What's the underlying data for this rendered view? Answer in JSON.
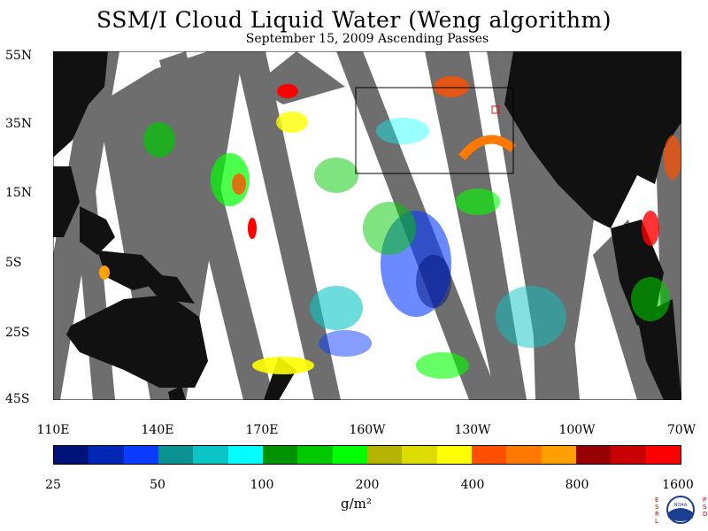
{
  "title": "SSM/I Cloud Liquid Water (Weng algorithm)",
  "subtitle": "September 15, 2009  Ascending Passes",
  "lat_labels": [
    "55N",
    "35N",
    "15N",
    "5S",
    "25S",
    "45S"
  ],
  "lon_labels": [
    "110E",
    "140E",
    "170E",
    "160W",
    "130W",
    "100W",
    "70W"
  ],
  "colorbar": {
    "colors": [
      "#00127a",
      "#0026b5",
      "#0a3cff",
      "#0b9190",
      "#0bc4c4",
      "#00ffff",
      "#009200",
      "#00c800",
      "#00ff00",
      "#b4b400",
      "#dcdc00",
      "#ffff00",
      "#ff5000",
      "#ff7800",
      "#ffa000",
      "#960000",
      "#c80000",
      "#ff0000"
    ],
    "tick_labels": [
      "25",
      "50",
      "100",
      "200",
      "400",
      "800",
      "1600"
    ],
    "units": "g/m²"
  },
  "logo": {
    "left_text": "ESRL",
    "right_text": "PSD",
    "center_text": "NOAA"
  }
}
